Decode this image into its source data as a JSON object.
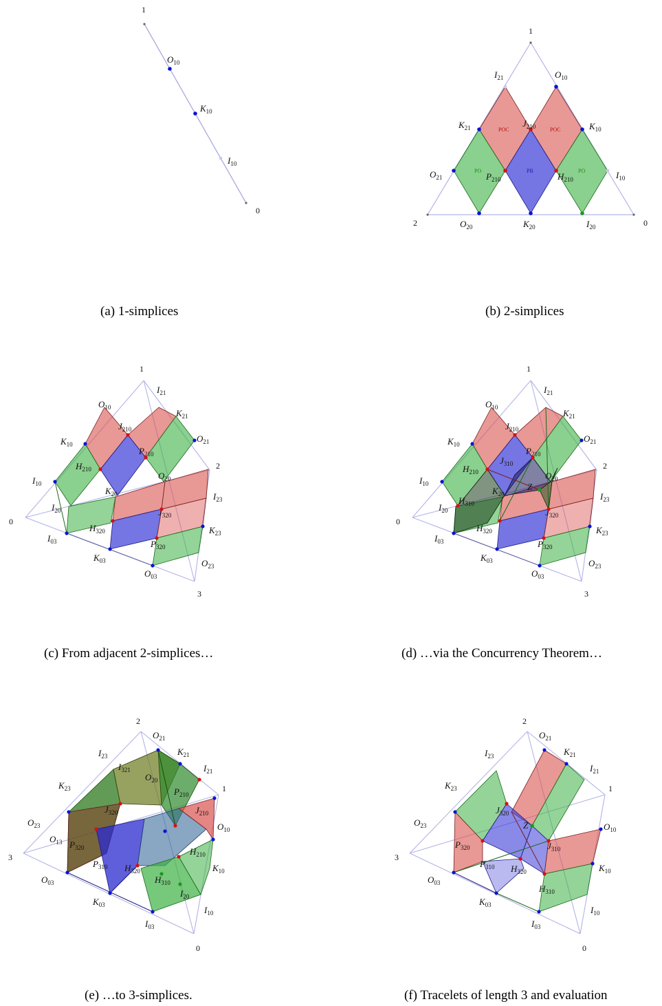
{
  "panels": [
    {
      "caption": "(a) 1-simplices",
      "vertices": [
        "1",
        "0"
      ],
      "labels": {
        "o10": "O",
        "o10s": "10",
        "k10": "K",
        "k10s": "10",
        "i10": "I",
        "i10s": "10"
      }
    },
    {
      "caption": "(b) 2-simplices",
      "vertices": [
        "1",
        "2",
        "0"
      ],
      "labels": {
        "i21": "I",
        "i21s": "21",
        "o10": "O",
        "o10s": "10",
        "k21": "K",
        "k21s": "21",
        "j210": "J",
        "j210s": "210",
        "k10": "K",
        "k10s": "10",
        "o21": "O",
        "o21s": "21",
        "p210": "P",
        "p210s": "210",
        "h210": "H",
        "h210s": "210",
        "i10": "I",
        "i10s": "10",
        "o20": "O",
        "o20s": "20",
        "k20": "K",
        "k20s": "20",
        "i20": "I",
        "i20s": "20"
      },
      "tags": {
        "poc": "POC",
        "pb": "PB",
        "po": "PO"
      }
    },
    {
      "caption": "(c) From adjacent 2-simplices…",
      "vertices": [
        "1",
        "0",
        "2",
        "3"
      ]
    },
    {
      "caption": "(d) …via the Concurrency Theorem…",
      "vertices": [
        "1",
        "0",
        "2",
        "3"
      ]
    },
    {
      "caption": "(e) …to 3-simplices.",
      "vertices": [
        "2",
        "1",
        "3",
        "0"
      ]
    },
    {
      "caption": "(f) Tracelets of length 3 and evaluation",
      "vertices": [
        "2",
        "1",
        "3",
        "0"
      ]
    }
  ],
  "label_text": {
    "O10": "O",
    "I21": "I",
    "K21": "K",
    "J210": "J",
    "O21": "O",
    "K10": "K",
    "P210": "P",
    "H210": "H",
    "I10": "I",
    "K20": "K",
    "O20": "O",
    "I20": "I",
    "I23": "I",
    "J320": "J",
    "H320": "H",
    "K23": "K",
    "P320": "P",
    "I03": "I",
    "K03": "K",
    "O03": "O",
    "O23": "O",
    "J310": "J",
    "H310": "H",
    "Z": "Z",
    "I321": "I",
    "O13": "O",
    "P310": "P",
    "s10": "10",
    "s21": "21",
    "s210": "210",
    "s20": "20",
    "s23": "23",
    "s320": "320",
    "s03": "03",
    "s310": "310",
    "s321": "321",
    "s13": "13"
  },
  "colors": {
    "poc": "#d9534f",
    "po": "#3cb043",
    "pb": "#3a3ad8",
    "blue_dot": "#0a14d2",
    "red_dot": "#d81010",
    "green_dot": "#1a9a1a",
    "edge": "#9a9ad8"
  }
}
